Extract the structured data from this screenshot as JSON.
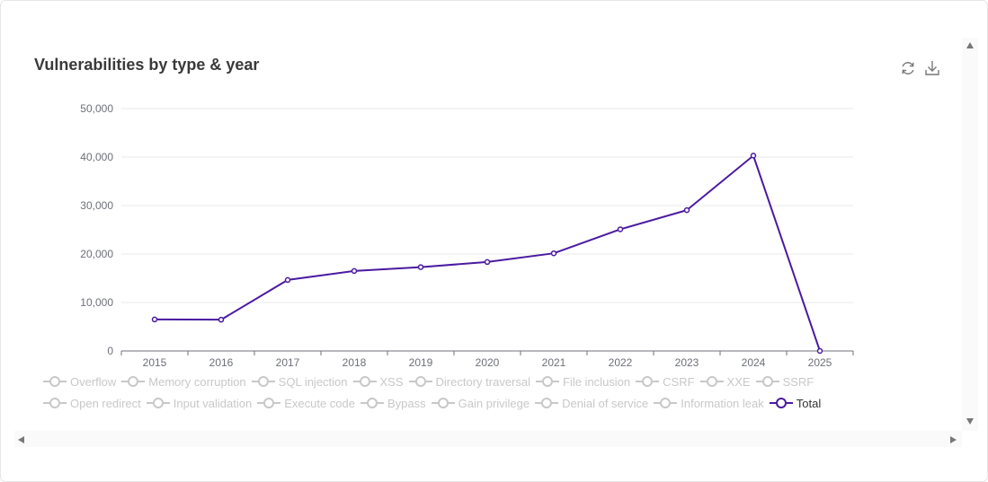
{
  "chart_data": {
    "type": "line",
    "title": "Vulnerabilities by type & year",
    "xlabel": "",
    "ylabel": "",
    "categories": [
      "2015",
      "2016",
      "2017",
      "2018",
      "2019",
      "2020",
      "2021",
      "2022",
      "2023",
      "2024",
      "2025"
    ],
    "ylim": [
      0,
      50000
    ],
    "yticks": [
      0,
      10000,
      20000,
      30000,
      40000,
      50000
    ],
    "ytick_labels": [
      "0",
      "10,000",
      "20,000",
      "30,000",
      "40,000",
      "50,000"
    ],
    "grid": true,
    "series": [
      {
        "name": "Total",
        "color": "#4a1aa0",
        "values": [
          6500,
          6450,
          14650,
          16500,
          17300,
          18350,
          20150,
          25100,
          29050,
          40300,
          0
        ]
      }
    ],
    "legend": {
      "placement": "bottom",
      "rows": [
        [
          "Overflow",
          "Memory corruption",
          "SQL injection",
          "XSS",
          "Directory traversal",
          "File inclusion",
          "CSRF",
          "XXE",
          "SSRF"
        ],
        [
          "Open redirect",
          "Input validation",
          "Execute code",
          "Bypass",
          "Gain privilege",
          "Denial of service",
          "Information leak",
          "Total"
        ]
      ],
      "active": [
        "Total"
      ],
      "inactive_color": "#c8c8c8"
    }
  },
  "toolbar": {
    "refresh_icon": "refresh-icon",
    "download_icon": "download-icon"
  }
}
